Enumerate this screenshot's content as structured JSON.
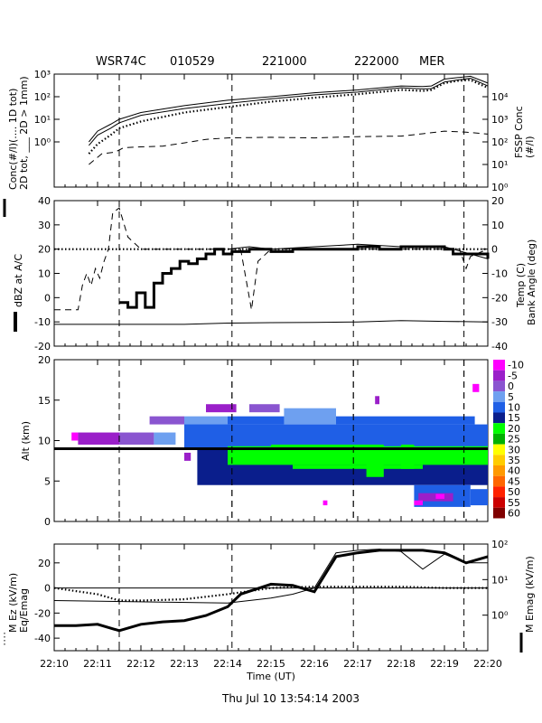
{
  "header": {
    "radar": "WSR74C",
    "date": "010529",
    "time1": "221000",
    "time2": "222000",
    "site": "MER"
  },
  "footer": "Thu Jul 10 13:54:14 2003",
  "x_axis": {
    "label": "Time (UT)",
    "ticks": [
      "22:10",
      "22:11",
      "22:12",
      "22:13",
      "22:14",
      "22:15",
      "22:16",
      "22:17",
      "22:18",
      "22:19",
      "22:20"
    ],
    "range": [
      0,
      10
    ]
  },
  "event_lines_min": [
    1.5,
    4.1,
    6.9,
    9.45
  ],
  "panels": [
    {
      "id": "conc",
      "left_label": [
        "Conc(#/l)(.... 1D tot)",
        "2D tot, ___ 2D > 1mm)"
      ],
      "right_label": [
        "FSSP Conc",
        "(#/l)"
      ],
      "left_ticks": [
        "10⁰",
        "10¹",
        "10²",
        "10³"
      ],
      "right_ticks": [
        "10⁰",
        "10¹",
        "10²",
        "10³",
        "10⁴"
      ],
      "left_log_range": [
        -2,
        3
      ],
      "right_log_range": [
        0,
        5
      ]
    },
    {
      "id": "dbz",
      "left_label": "dBZ at A/C",
      "right_label": [
        "Temp (C)",
        "Bank Angle (deg)"
      ],
      "left_ticks": [
        "-20",
        "-10",
        "0",
        "10",
        "20",
        "30",
        "40"
      ],
      "right_ticks": [
        "-40",
        "-30",
        "-20",
        "-10",
        "0",
        "10",
        "20"
      ],
      "left_range": [
        -20,
        40
      ],
      "right_range": [
        -40,
        20
      ]
    },
    {
      "id": "alt",
      "left_label": "Alt (km)",
      "left_ticks": [
        "0",
        "5",
        "10",
        "15",
        "20"
      ],
      "range": [
        0,
        20
      ],
      "aircraft_alt_km": 9,
      "colorbar": [
        {
          "label": "-10",
          "color": "#ff00ff"
        },
        {
          "label": "-5",
          "color": "#9a1fc9"
        },
        {
          "label": "0",
          "color": "#8a55d0"
        },
        {
          "label": "5",
          "color": "#6ea0f0"
        },
        {
          "label": "10",
          "color": "#1f5fe6"
        },
        {
          "label": "15",
          "color": "#0a1e8c"
        },
        {
          "label": "20",
          "color": "#00ff00"
        },
        {
          "label": "25",
          "color": "#00b000"
        },
        {
          "label": "30",
          "color": "#ffff00"
        },
        {
          "label": "35",
          "color": "#ffcc00"
        },
        {
          "label": "40",
          "color": "#ff9900"
        },
        {
          "label": "45",
          "color": "#ff6600"
        },
        {
          "label": "50",
          "color": "#ff2200"
        },
        {
          "label": "55",
          "color": "#cc0000"
        },
        {
          "label": "60",
          "color": "#800000"
        }
      ]
    },
    {
      "id": "efield",
      "left_label": [
        "M Ez (kV/m)",
        "Eq/Emag"
      ],
      "right_label": "M Emag (kV/m)",
      "left_ticks": [
        "-40",
        "-20",
        "0",
        "20"
      ],
      "right_ticks": [
        "10⁰",
        "10¹",
        "10²"
      ],
      "left_range": [
        -50,
        35
      ],
      "right_log_range": [
        -1,
        2
      ]
    }
  ],
  "chart_data": [
    {
      "type": "line",
      "panel": "conc",
      "scale": "log",
      "series": [
        {
          "axis": "left",
          "style": "solid",
          "x": [
            0.8,
            1.0,
            1.3,
            1.5,
            2,
            3,
            4,
            5,
            6,
            7,
            8,
            8.5,
            8.7,
            9,
            9.3,
            9.6,
            10
          ],
          "y": [
            1.0,
            3,
            6,
            10,
            20,
            40,
            70,
            100,
            150,
            200,
            300,
            280,
            300,
            600,
            700,
            800,
            400
          ]
        },
        {
          "axis": "left",
          "style": "solid",
          "x": [
            0.8,
            1.0,
            1.3,
            1.5,
            2,
            3,
            4,
            5,
            6,
            7,
            8,
            8.5,
            8.7,
            9,
            9.3,
            9.6,
            10
          ],
          "y": [
            0.7,
            2,
            4,
            7,
            15,
            30,
            50,
            80,
            120,
            160,
            250,
            220,
            230,
            450,
            550,
            650,
            300
          ]
        },
        {
          "axis": "left",
          "style": "dotted",
          "x": [
            0.8,
            1.0,
            1.3,
            1.5,
            2,
            3,
            4,
            5,
            6,
            7,
            8,
            8.5,
            8.7,
            9,
            9.3,
            9.6,
            10
          ],
          "y": [
            0.3,
            0.8,
            2,
            4,
            8,
            20,
            35,
            60,
            90,
            130,
            200,
            180,
            200,
            400,
            500,
            550,
            250
          ]
        },
        {
          "axis": "right",
          "style": "dashed",
          "x": [
            0.8,
            1.1,
            1.4,
            1.6,
            2,
            2.5,
            3,
            3.5,
            4,
            5,
            6,
            7,
            8,
            8.5,
            9,
            9.5,
            10
          ],
          "y": [
            10,
            30,
            35,
            55,
            60,
            65,
            90,
            130,
            150,
            160,
            150,
            170,
            180,
            230,
            300,
            270,
            220
          ]
        }
      ]
    },
    {
      "type": "line",
      "panel": "dbz",
      "series": [
        {
          "axis": "left",
          "style": "thick-step",
          "x": [
            1.5,
            1.7,
            1.9,
            2.1,
            2.3,
            2.5,
            2.7,
            2.9,
            3.1,
            3.3,
            3.5,
            3.7,
            3.9,
            4.1,
            4.5,
            5,
            5.5,
            6,
            6.5,
            7,
            7.5,
            8,
            8.5,
            9,
            9.2,
            9.5,
            10
          ],
          "y": [
            -2,
            -4,
            2,
            -4,
            6,
            10,
            12,
            15,
            14,
            16,
            18,
            20,
            18,
            19,
            20,
            19,
            20,
            20,
            20,
            21,
            20,
            21,
            21,
            20,
            18,
            18,
            16
          ]
        },
        {
          "axis": "left",
          "style": "thin",
          "x": [
            4.0,
            4.5,
            5,
            6,
            7,
            8,
            9,
            10
          ],
          "y": [
            20,
            21,
            20,
            21,
            22,
            21,
            21,
            16
          ]
        },
        {
          "axis": "right",
          "style": "solid",
          "x": [
            0,
            1,
            2,
            3,
            4,
            5,
            6,
            7,
            8,
            9,
            10
          ],
          "y": [
            -31,
            -31,
            -31,
            -31,
            -30.5,
            -30.3,
            -30.2,
            -30,
            -29.5,
            -29.8,
            -30
          ]
        },
        {
          "axis": "right",
          "style": "dashed",
          "x": [
            0,
            0.55,
            0.65,
            0.75,
            0.85,
            0.95,
            1.05,
            1.15,
            1.25,
            1.35,
            1.5,
            1.7,
            2,
            4.3,
            4.45,
            4.55,
            4.7,
            5,
            9.35,
            9.5,
            9.6,
            10
          ],
          "y": [
            -25,
            -25,
            -15,
            -10,
            -15,
            -8,
            -12,
            -5,
            0,
            15,
            17,
            5,
            0,
            0,
            -15,
            -25,
            -5,
            0,
            0,
            -8,
            -3,
            0
          ]
        },
        {
          "axis": "right",
          "style": "dotted",
          "x": [
            0,
            10
          ],
          "y": [
            0,
            0
          ]
        }
      ]
    },
    {
      "type": "heatmap",
      "panel": "alt",
      "ylabel": "Alt (km)",
      "aircraft_alt_km": 9
    },
    {
      "type": "line",
      "panel": "efield",
      "series": [
        {
          "axis": "left",
          "style": "thick",
          "x": [
            0,
            0.5,
            1,
            1.5,
            2,
            2.5,
            3,
            3.5,
            4,
            4.3,
            5,
            5.5,
            6,
            6.5,
            7,
            7.5,
            8,
            8.5,
            9,
            9.5,
            10
          ],
          "y": [
            -30,
            -30,
            -29,
            -34,
            -29,
            -27,
            -26,
            -22,
            -15,
            -5,
            3,
            2,
            -3,
            25,
            28,
            30,
            30,
            30,
            28,
            20,
            25
          ]
        },
        {
          "axis": "left",
          "style": "thin",
          "x": [
            0,
            4,
            4.5,
            5,
            5.5,
            6,
            6.5,
            7,
            7.5,
            8,
            8.5,
            9,
            9.5,
            10
          ],
          "y": [
            -10,
            -12,
            -10,
            -8,
            -5,
            0,
            28,
            30,
            31,
            29,
            15,
            27,
            20,
            20
          ]
        },
        {
          "axis": "left",
          "style": "dotted",
          "x": [
            0,
            1,
            1.5,
            2,
            3,
            4,
            5,
            6,
            7,
            8,
            9,
            10
          ],
          "y": [
            0,
            -5,
            -10,
            -10,
            -9,
            -5,
            0,
            1,
            1,
            1,
            0,
            0
          ]
        },
        {
          "axis": "left",
          "style": "solid",
          "x": [
            0,
            10
          ],
          "y": [
            0,
            0
          ]
        }
      ]
    }
  ]
}
